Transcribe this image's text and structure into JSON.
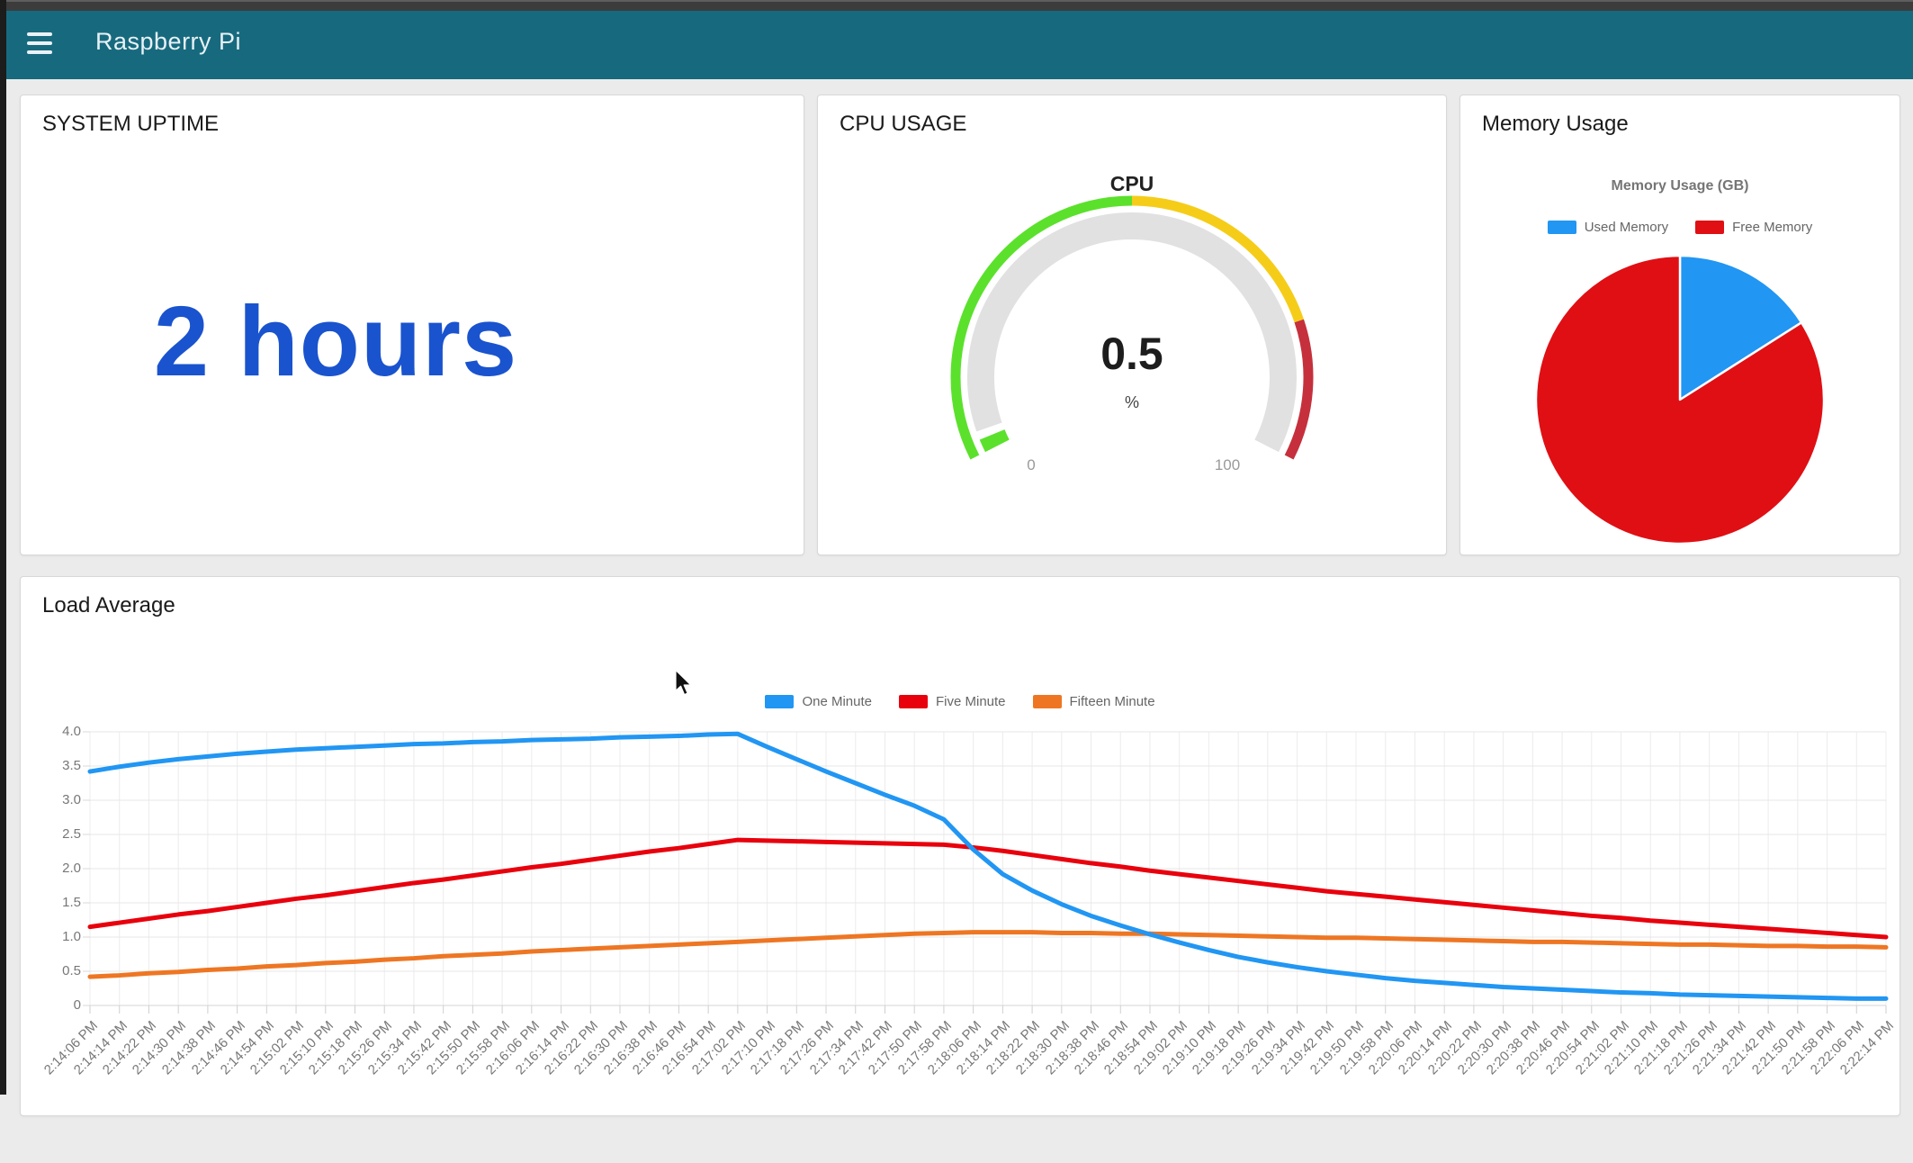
{
  "navbar": {
    "title": "Raspberry Pi",
    "bg": "#176A7E"
  },
  "uptime_card": {
    "title": "SYSTEM UPTIME",
    "value": "2 hours",
    "value_color": "#1A53CE"
  },
  "cpu_card": {
    "title": "CPU USAGE"
  },
  "memory_card": {
    "title": "Memory Usage"
  },
  "load_card": {
    "title": "Load Average"
  },
  "chart_data": [
    {
      "id": "cpu_gauge",
      "type": "gauge",
      "title": "CPU",
      "value": 0.5,
      "value_label": "0.5",
      "unit": "%",
      "min": 0,
      "max": 100,
      "min_label": "0",
      "max_label": "100",
      "sweep_deg": 234,
      "zones": [
        {
          "from": 0,
          "to": 50,
          "color": "#5BE12C"
        },
        {
          "from": 50,
          "to": 80.5,
          "color": "#F5CD19"
        },
        {
          "from": 80.5,
          "to": 100,
          "color": "#C5303C"
        }
      ],
      "track_color": "#E1E1E1"
    },
    {
      "id": "memory_pie",
      "type": "pie",
      "title": "Memory Usage (GB)",
      "legend_position": "top",
      "slices": [
        {
          "label": "Used Memory",
          "pct": 16,
          "color": "#2196F3"
        },
        {
          "label": "Free Memory",
          "pct": 84,
          "color": "#E00F14"
        }
      ]
    },
    {
      "id": "load_line",
      "type": "line",
      "legend_position": "top",
      "grid": true,
      "ylim": [
        0,
        4
      ],
      "yticks": [
        "4.0",
        "3.5",
        "3.0",
        "2.5",
        "2.0",
        "1.5",
        "1.0",
        "0.5",
        "0"
      ],
      "categories": [
        "2:14:06 PM",
        "2:14:14 PM",
        "2:14:22 PM",
        "2:14:30 PM",
        "2:14:38 PM",
        "2:14:46 PM",
        "2:14:54 PM",
        "2:15:02 PM",
        "2:15:10 PM",
        "2:15:18 PM",
        "2:15:26 PM",
        "2:15:34 PM",
        "2:15:42 PM",
        "2:15:50 PM",
        "2:15:58 PM",
        "2:16:06 PM",
        "2:16:14 PM",
        "2:16:22 PM",
        "2:16:30 PM",
        "2:16:38 PM",
        "2:16:46 PM",
        "2:16:54 PM",
        "2:17:02 PM",
        "2:17:10 PM",
        "2:17:18 PM",
        "2:17:26 PM",
        "2:17:34 PM",
        "2:17:42 PM",
        "2:17:50 PM",
        "2:17:58 PM",
        "2:18:06 PM",
        "2:18:14 PM",
        "2:18:22 PM",
        "2:18:30 PM",
        "2:18:38 PM",
        "2:18:46 PM",
        "2:18:54 PM",
        "2:19:02 PM",
        "2:19:10 PM",
        "2:19:18 PM",
        "2:19:26 PM",
        "2:19:34 PM",
        "2:19:42 PM",
        "2:19:50 PM",
        "2:19:58 PM",
        "2:20:06 PM",
        "2:20:14 PM",
        "2:20:22 PM",
        "2:20:30 PM",
        "2:20:38 PM",
        "2:20:46 PM",
        "2:20:54 PM",
        "2:21:02 PM",
        "2:21:10 PM",
        "2:21:18 PM",
        "2:21:26 PM",
        "2:21:34 PM",
        "2:21:42 PM",
        "2:21:50 PM",
        "2:21:58 PM",
        "2:22:06 PM",
        "2:22:14 PM"
      ],
      "series": [
        {
          "name": "One Minute",
          "color": "#2196F3",
          "values": [
            3.42,
            3.49,
            3.55,
            3.6,
            3.64,
            3.68,
            3.71,
            3.74,
            3.76,
            3.78,
            3.8,
            3.82,
            3.83,
            3.85,
            3.86,
            3.88,
            3.89,
            3.9,
            3.92,
            3.93,
            3.94,
            3.96,
            3.97,
            3.78,
            3.6,
            3.42,
            3.25,
            3.08,
            2.92,
            2.72,
            2.28,
            1.92,
            1.68,
            1.48,
            1.31,
            1.17,
            1.04,
            0.92,
            0.81,
            0.71,
            0.63,
            0.56,
            0.5,
            0.45,
            0.4,
            0.36,
            0.33,
            0.3,
            0.27,
            0.25,
            0.23,
            0.21,
            0.19,
            0.18,
            0.16,
            0.15,
            0.14,
            0.13,
            0.12,
            0.11,
            0.1,
            0.1
          ]
        },
        {
          "name": "Five Minute",
          "color": "#E8000D",
          "values": [
            1.15,
            1.21,
            1.27,
            1.33,
            1.38,
            1.44,
            1.5,
            1.56,
            1.61,
            1.67,
            1.73,
            1.79,
            1.84,
            1.9,
            1.96,
            2.02,
            2.07,
            2.13,
            2.19,
            2.25,
            2.3,
            2.36,
            2.42,
            2.41,
            2.4,
            2.39,
            2.38,
            2.37,
            2.36,
            2.35,
            2.31,
            2.26,
            2.2,
            2.14,
            2.08,
            2.03,
            1.97,
            1.92,
            1.87,
            1.82,
            1.77,
            1.72,
            1.67,
            1.63,
            1.59,
            1.55,
            1.51,
            1.47,
            1.43,
            1.39,
            1.35,
            1.31,
            1.28,
            1.24,
            1.21,
            1.18,
            1.15,
            1.12,
            1.09,
            1.06,
            1.03,
            1.0
          ]
        },
        {
          "name": "Fifteen Minute",
          "color": "#EE7623",
          "values": [
            0.42,
            0.44,
            0.47,
            0.49,
            0.52,
            0.54,
            0.57,
            0.59,
            0.62,
            0.64,
            0.67,
            0.69,
            0.72,
            0.74,
            0.76,
            0.79,
            0.81,
            0.83,
            0.85,
            0.87,
            0.89,
            0.91,
            0.93,
            0.95,
            0.97,
            0.99,
            1.01,
            1.03,
            1.05,
            1.06,
            1.07,
            1.07,
            1.07,
            1.06,
            1.06,
            1.05,
            1.05,
            1.04,
            1.03,
            1.02,
            1.01,
            1.0,
            0.99,
            0.99,
            0.98,
            0.97,
            0.96,
            0.95,
            0.94,
            0.93,
            0.93,
            0.92,
            0.91,
            0.9,
            0.89,
            0.89,
            0.88,
            0.87,
            0.87,
            0.86,
            0.86,
            0.85
          ]
        }
      ]
    }
  ]
}
